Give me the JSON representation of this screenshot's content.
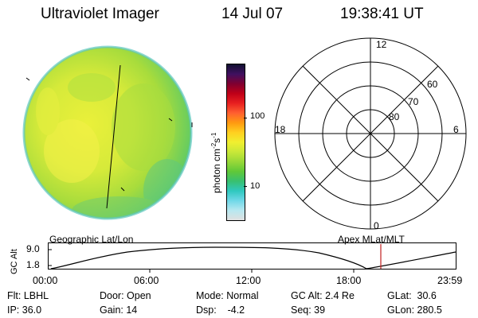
{
  "header": {
    "title": "Ultraviolet Imager",
    "date": "14 Jul 07",
    "time": "19:38:41 UT"
  },
  "colorbar": {
    "label": "photon cm",
    "sup1": "-2",
    "mid": "s",
    "sup2": "-1",
    "ticks": [
      "100",
      "10"
    ],
    "colors": [
      "#101030",
      "#401060",
      "#800030",
      "#c00018",
      "#e82020",
      "#ff6030",
      "#ff9a10",
      "#ffd020",
      "#f0ef30",
      "#c8e838",
      "#98d838",
      "#60c838",
      "#38c070",
      "#30c8c0",
      "#70d8e8",
      "#b8e8f0",
      "#e0e0e0"
    ]
  },
  "polar": {
    "hours": [
      "12",
      "6",
      "0",
      "18"
    ],
    "lats": [
      "60",
      "70",
      "80"
    ]
  },
  "timeline": {
    "left_label": "Geographic Lat/Lon",
    "right_label": "Apex MLat/MLT",
    "yaxis_label": "GC Alt",
    "y_ticks": [
      "9.0",
      "1.8"
    ],
    "x_ticks": [
      "00:00",
      "06:00",
      "12:00",
      "18:00",
      "23:59"
    ],
    "marker_color": "#c02020"
  },
  "info": {
    "row1": [
      "Flt: LBHL",
      "Door: Open",
      "Mode: Normal",
      "GC Alt: 2.4 Re",
      "GLat:  30.6"
    ],
    "row2": [
      "IP: 36.0",
      "Gain: 14",
      "Dsp:    -4.2",
      "Seq: 39",
      "GLon: 280.5"
    ]
  }
}
